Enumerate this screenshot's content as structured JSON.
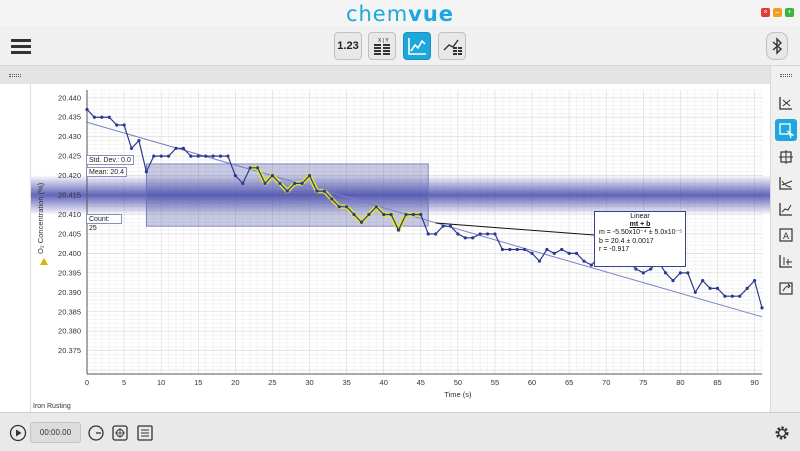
{
  "app": {
    "brand_prefix": "chem",
    "brand_suffix": "vue",
    "accent_color": "#1ea7dd"
  },
  "window_controls": [
    {
      "name": "minimize",
      "color": "#e23a3a",
      "glyph": "×"
    },
    {
      "name": "restore",
      "color": "#f0a020",
      "glyph": "–"
    },
    {
      "name": "maximize",
      "color": "#3fb23f",
      "glyph": "+"
    }
  ],
  "toolbar": {
    "meter_label": "1.23",
    "table_icon": "table-xy-icon",
    "graph_icon": "graph-icon",
    "graph_table_icon": "graph-table-icon",
    "bluetooth_icon": "bluetooth-icon"
  },
  "right_tools": [
    {
      "name": "autoscale",
      "icon": "autoscale-icon",
      "active": false
    },
    {
      "name": "select",
      "icon": "select-cursor-icon",
      "active": true
    },
    {
      "name": "examine",
      "icon": "examine-icon",
      "active": false
    },
    {
      "name": "tangent",
      "icon": "tangent-icon",
      "active": false
    },
    {
      "name": "curve-fit",
      "icon": "curve-fit-icon",
      "active": false
    },
    {
      "name": "annotate",
      "icon": "annotate-icon",
      "active": false
    },
    {
      "name": "statistics",
      "icon": "statistics-icon",
      "active": false
    },
    {
      "name": "export",
      "icon": "export-icon",
      "active": false
    }
  ],
  "stats": {
    "std_dev": "Std. Dev.: 0.0",
    "mean": "Mean: 20.4",
    "count": "Count: 25"
  },
  "fit": {
    "title": "Linear",
    "equation": "mt + b",
    "m_line": "m  = -5.50x10⁻⁴ ± 5.0x10⁻⁵",
    "b_line": "b  = 20.4          ± 0.0017",
    "r_line": "r = -0.917"
  },
  "dataset_label": "Iron Rusting",
  "bottom": {
    "time": "00:00.00"
  },
  "chart_data": {
    "type": "line",
    "xlabel": "Time (s)",
    "ylabel": "O₂ Concentration (%)",
    "xlim": [
      0,
      91
    ],
    "ylim": [
      20.369,
      20.442
    ],
    "x_ticks": [
      0,
      5,
      10,
      15,
      20,
      25,
      30,
      35,
      40,
      45,
      50,
      55,
      60,
      65,
      70,
      75,
      80,
      85,
      90
    ],
    "y_ticks": [
      20.375,
      20.38,
      20.385,
      20.39,
      20.395,
      20.4,
      20.405,
      20.41,
      20.415,
      20.42,
      20.425,
      20.43,
      20.435,
      20.44
    ],
    "y_tick_labels": [
      "20.375",
      "20.380",
      "20.385",
      "20.390",
      "20.395",
      "20.400",
      "20.405",
      "20.410",
      "20.415",
      "20.420",
      "20.425",
      "20.430",
      "20.435",
      "20.440"
    ],
    "grid": true,
    "series": [
      {
        "name": "O₂ Concentration",
        "color": "#2a3a8c",
        "x": [
          0,
          1,
          2,
          3,
          4,
          5,
          6,
          7,
          8,
          9,
          10,
          11,
          12,
          13,
          14,
          15,
          16,
          17,
          18,
          19,
          20,
          21,
          22,
          23,
          24,
          25,
          26,
          27,
          28,
          29,
          30,
          31,
          32,
          33,
          34,
          35,
          36,
          37,
          38,
          39,
          40,
          41,
          42,
          43,
          44,
          45,
          46,
          47,
          48,
          49,
          50,
          51,
          52,
          53,
          54,
          55,
          56,
          57,
          58,
          59,
          60,
          61,
          62,
          63,
          64,
          65,
          66,
          67,
          68,
          69,
          70,
          71,
          72,
          73,
          74,
          75,
          76,
          77,
          78,
          79,
          80,
          81,
          82,
          83,
          84,
          85,
          86,
          87,
          88,
          89,
          90,
          91
        ],
        "y": [
          20.437,
          20.435,
          20.435,
          20.435,
          20.433,
          20.433,
          20.427,
          20.429,
          20.421,
          20.425,
          20.425,
          20.425,
          20.427,
          20.427,
          20.425,
          20.425,
          20.425,
          20.425,
          20.425,
          20.425,
          20.42,
          20.418,
          20.422,
          20.422,
          20.418,
          20.42,
          20.418,
          20.416,
          20.418,
          20.418,
          20.42,
          20.416,
          20.416,
          20.414,
          20.412,
          20.412,
          20.41,
          20.408,
          20.41,
          20.412,
          20.41,
          20.41,
          20.406,
          20.41,
          20.41,
          20.41,
          20.405,
          20.405,
          20.407,
          20.407,
          20.405,
          20.404,
          20.404,
          20.405,
          20.405,
          20.405,
          20.401,
          20.401,
          20.401,
          20.401,
          20.4,
          20.398,
          20.401,
          20.4,
          20.401,
          20.4,
          20.4,
          20.398,
          20.397,
          20.399,
          20.397,
          20.397,
          20.397,
          20.398,
          20.396,
          20.395,
          20.396,
          20.398,
          20.395,
          20.393,
          20.395,
          20.395,
          20.39,
          20.393,
          20.391,
          20.391,
          20.389,
          20.389,
          20.389,
          20.391,
          20.393,
          20.386
        ]
      }
    ],
    "selection": {
      "x": [
        22,
        45
      ]
    },
    "fit_line": {
      "x": [
        0,
        91
      ],
      "y": [
        20.4337,
        20.3837
      ]
    },
    "stat_band": {
      "x": [
        8,
        46
      ],
      "mean": 20.415,
      "y_extent": [
        20.407,
        20.423
      ]
    }
  }
}
